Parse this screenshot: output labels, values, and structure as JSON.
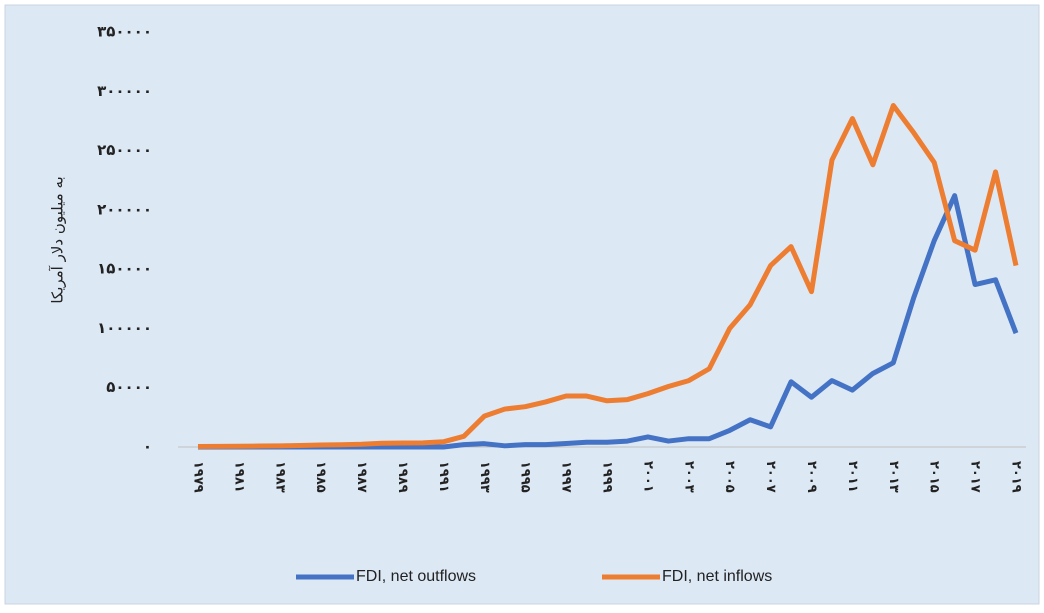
{
  "chart_data": {
    "type": "line",
    "y_label": "به میلیون دلار آمریکا",
    "categories": [
      "۱۹۷۹",
      null,
      "۱۹۸۱",
      null,
      "۱۹۸۳",
      null,
      "۱۹۸۵",
      null,
      "۱۹۸۷",
      null,
      "۱۹۸۹",
      null,
      "۱۹۹۱",
      null,
      "۱۹۹۳",
      null,
      "۱۹۹۵",
      null,
      "۱۹۹۷",
      null,
      "۱۹۹۹",
      null,
      "۲۰۰۱",
      null,
      "۲۰۰۳",
      null,
      "۲۰۰۵",
      null,
      "۲۰۰۷",
      null,
      "۲۰۰۹",
      null,
      "۲۰۱۱",
      null,
      "۲۰۱۳",
      null,
      "۲۰۱۵",
      null,
      "۲۰۱۷",
      null,
      "۲۰۱۹"
    ],
    "series": [
      {
        "name": "FDI, net outflows",
        "color": "#4472c4",
        "values": [
          0,
          0,
          0,
          0,
          0,
          0,
          0,
          0,
          0,
          0,
          0,
          0,
          0,
          2000,
          2800,
          1000,
          2000,
          2000,
          3000,
          4000,
          4000,
          5000,
          8500,
          5000,
          7000,
          7000,
          14000,
          23000,
          17000,
          55000,
          42000,
          56000,
          48000,
          62000,
          71000,
          126000,
          174000,
          212000,
          137000,
          141000,
          96000
        ]
      },
      {
        "name": "FDI, net inflows",
        "color": "#ed7d31",
        "values": [
          400,
          500,
          600,
          800,
          900,
          1300,
          1700,
          1900,
          2300,
          3200,
          3400,
          3500,
          4400,
          9000,
          26000,
          32000,
          34000,
          38000,
          43000,
          43000,
          39000,
          40000,
          45000,
          51000,
          56000,
          66000,
          100000,
          120000,
          153000,
          169000,
          131000,
          242000,
          277000,
          238000,
          288000,
          265000,
          240000,
          174000,
          166000,
          232000,
          153000
        ]
      }
    ],
    "ylim": [
      0,
      350000
    ],
    "yticks": [
      {
        "value": 0,
        "label": "۰"
      },
      {
        "value": 50000,
        "label": "۵۰۰۰۰"
      },
      {
        "value": 100000,
        "label": "۱۰۰۰۰۰"
      },
      {
        "value": 150000,
        "label": "۱۵۰۰۰۰"
      },
      {
        "value": 200000,
        "label": "۲۰۰۰۰۰"
      },
      {
        "value": 250000,
        "label": "۲۵۰۰۰۰"
      },
      {
        "value": 300000,
        "label": "۳۰۰۰۰۰"
      },
      {
        "value": 350000,
        "label": "۳۵۰۰۰۰"
      }
    ],
    "grid": false,
    "legend": "bottom"
  }
}
